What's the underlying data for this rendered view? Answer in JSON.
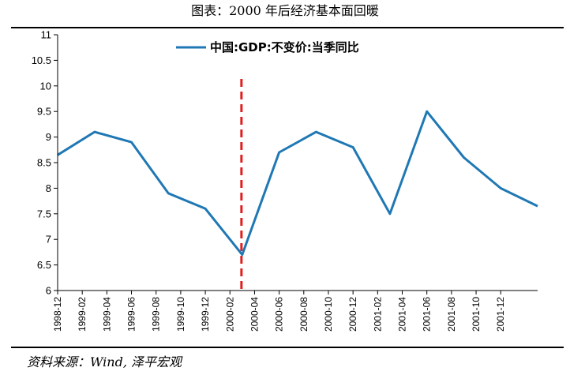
{
  "header": {
    "title": "图表：2000 年后经济基本面回暖"
  },
  "footer": {
    "source": "资料来源：Wind, 泽平宏观"
  },
  "colors": {
    "series": "#1F78B4",
    "marker": "#E02020",
    "axis": "#000000"
  },
  "chart_data": {
    "type": "line",
    "title": "图表：2000 年后经济基本面回暖",
    "xlabel": "",
    "ylabel": "",
    "ylim": [
      6,
      11
    ],
    "yticks": [
      6,
      6.5,
      7,
      7.5,
      8,
      8.5,
      9,
      9.5,
      10,
      10.5,
      11
    ],
    "ytick_labels": [
      "6",
      "6.5",
      "7",
      "7.5",
      "8",
      "8.5",
      "9",
      "9.5",
      "10",
      "10.5",
      "11"
    ],
    "x_ticks": [
      "1998-12",
      "1999-02",
      "1999-04",
      "1999-06",
      "1999-08",
      "1999-10",
      "1999-12",
      "2000-02",
      "2000-04",
      "2000-06",
      "2000-08",
      "2000-10",
      "2000-12",
      "2001-02",
      "2001-04",
      "2001-06",
      "2001-08",
      "2001-10",
      "2001-12"
    ],
    "grid": false,
    "legend_position": "top-center",
    "series": [
      {
        "name": "中国:GDP:不变价:当季同比",
        "points": [
          {
            "x": "1998-12",
            "y": 8.65
          },
          {
            "x": "1999-03",
            "y": 9.1
          },
          {
            "x": "1999-06",
            "y": 8.9
          },
          {
            "x": "1999-09",
            "y": 7.9
          },
          {
            "x": "1999-12",
            "y": 7.6
          },
          {
            "x": "2000-03",
            "y": 6.7
          },
          {
            "x": "2000-06",
            "y": 8.7
          },
          {
            "x": "2000-09",
            "y": 9.1
          },
          {
            "x": "2000-12",
            "y": 8.8
          },
          {
            "x": "2001-03",
            "y": 7.5
          },
          {
            "x": "2001-06",
            "y": 9.5
          },
          {
            "x": "2001-09",
            "y": 8.6
          },
          {
            "x": "2001-12",
            "y": 8.0
          },
          {
            "x": "2002-03",
            "y": 7.65
          }
        ]
      }
    ],
    "reference_line": {
      "x": "2000-03",
      "style": "dashed"
    }
  }
}
